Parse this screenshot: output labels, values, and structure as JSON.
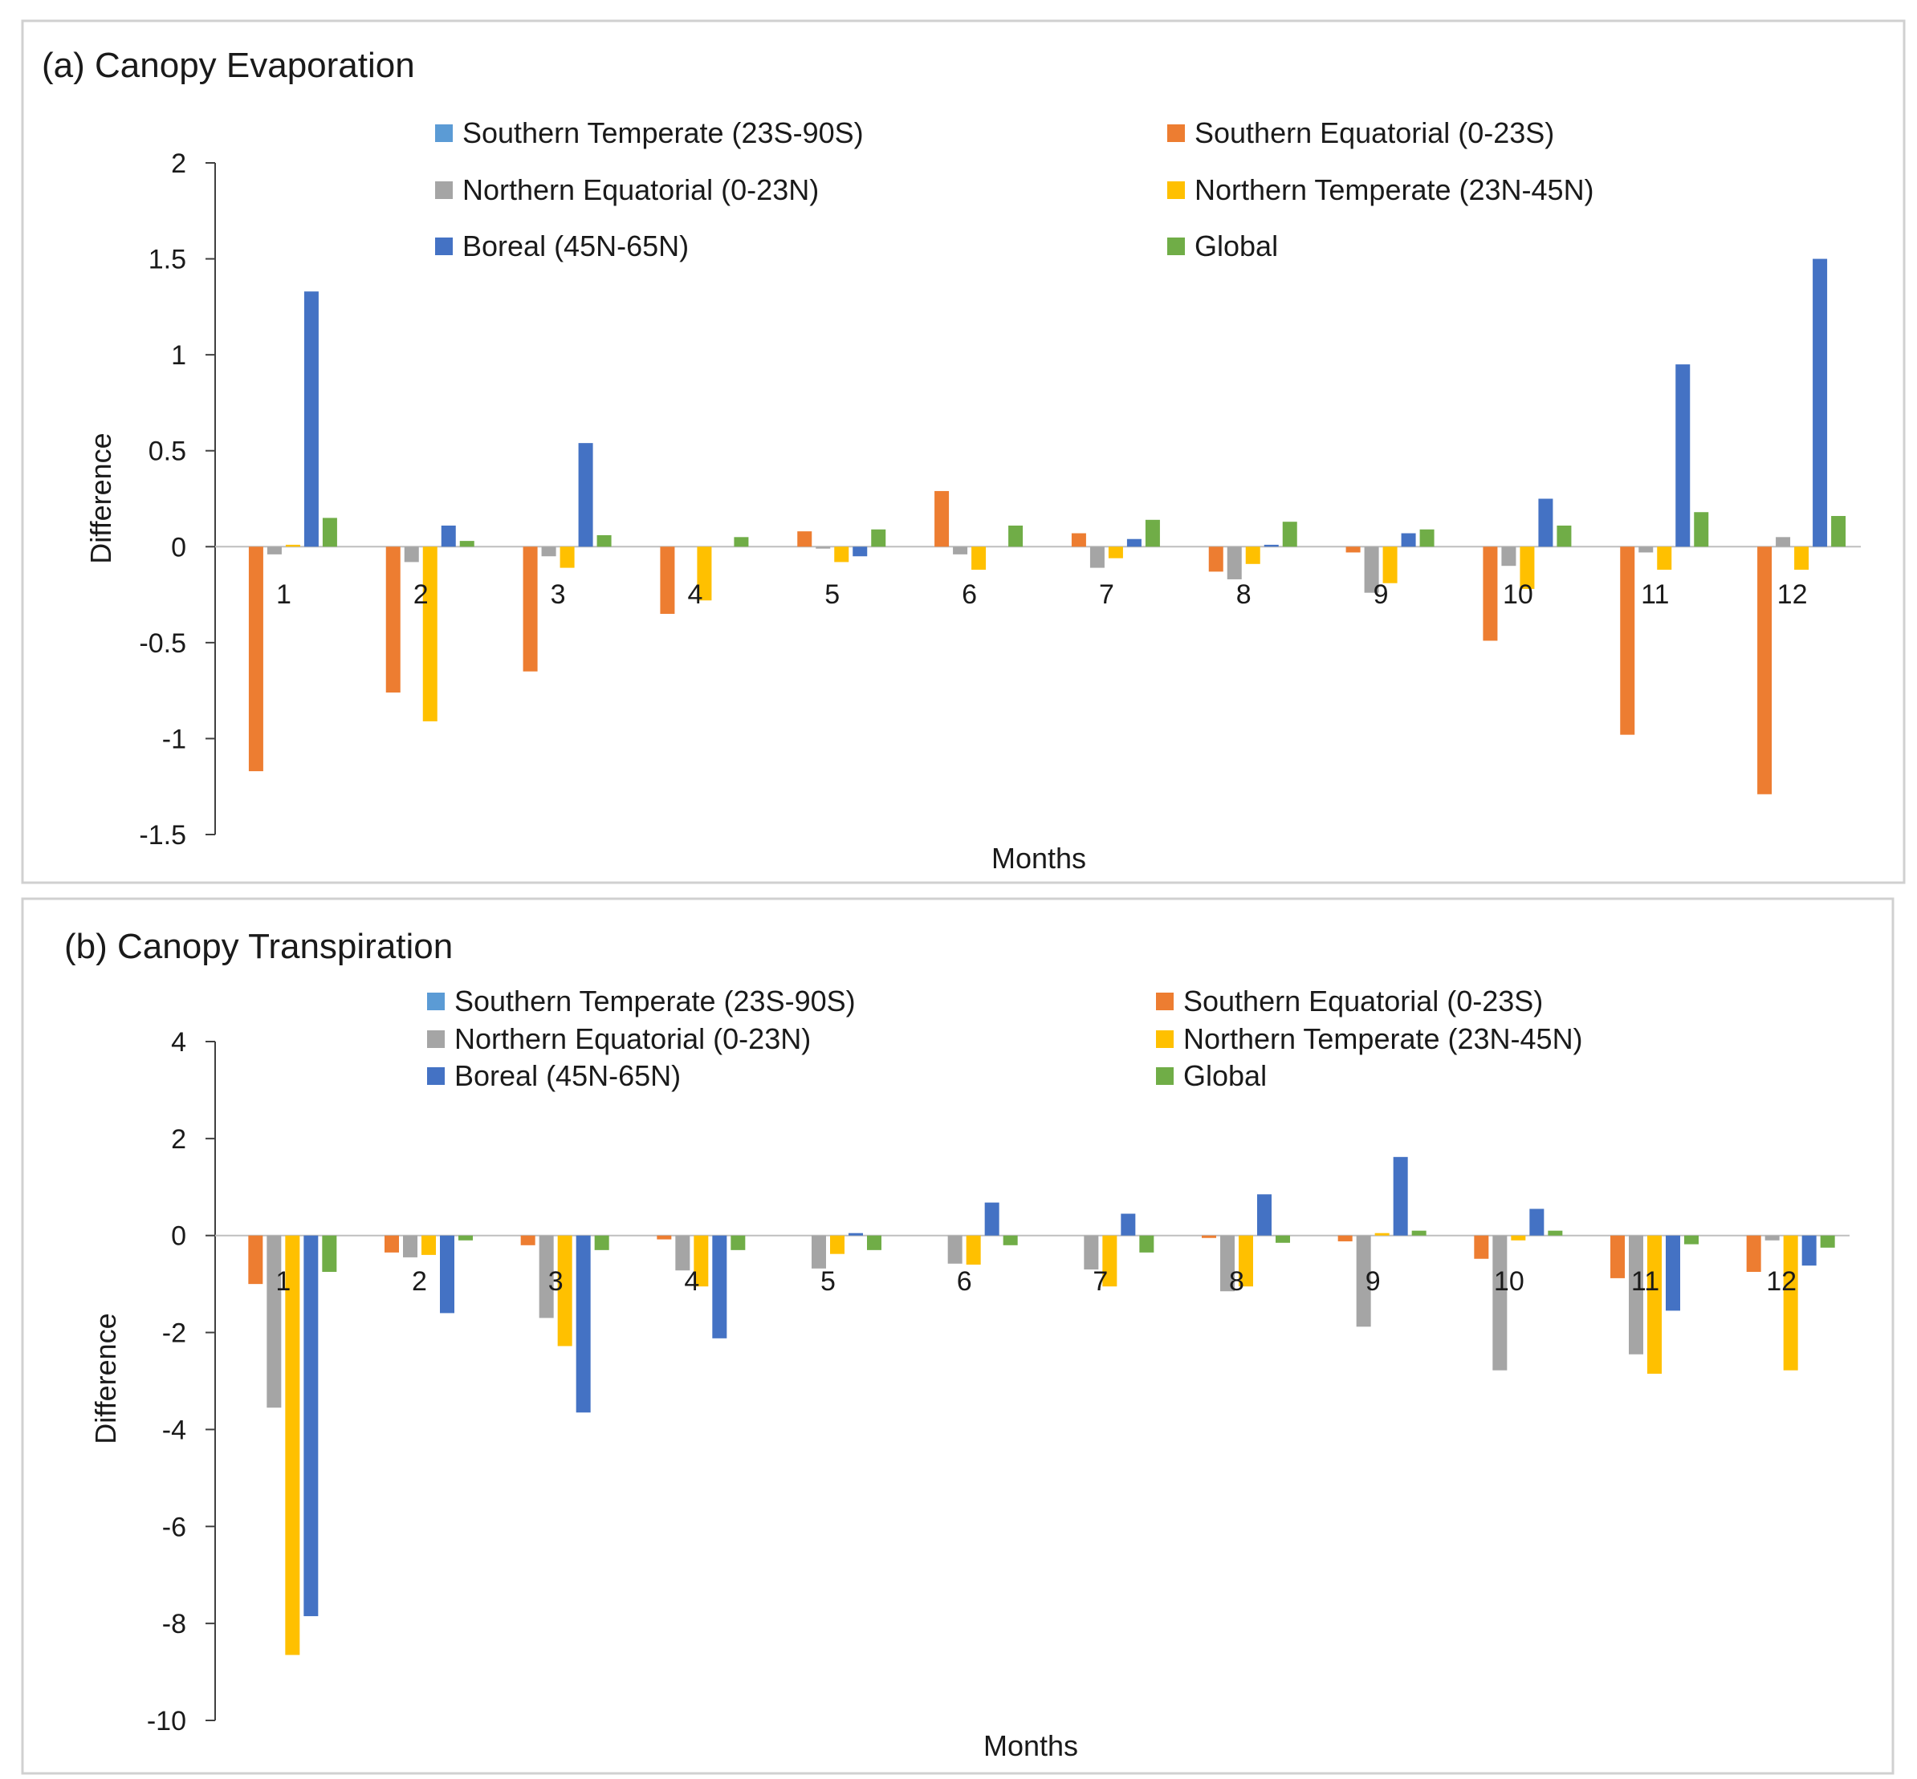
{
  "series_colors": {
    "Southern Temperate (23S-90S)": "#5B9BD5",
    "Southern Equatorial (0-23S)": "#ED7D31",
    "Northern Equatorial (0-23N)": "#A5A5A5",
    "Northern Temperate (23N-45N)": "#FFC000",
    "Boreal (45N-65N)": "#4472C4",
    "Global": "#70AD47"
  },
  "chart_data": [
    {
      "type": "bar",
      "title": "(a) Canopy Evaporation",
      "xlabel": "Months",
      "ylabel": "Difference",
      "ylim": [
        -1.5,
        2
      ],
      "yticks": [
        "2",
        "1.5",
        "1",
        "0.5",
        "0",
        "-0.5",
        "-1",
        "-1.5"
      ],
      "categories": [
        "1",
        "2",
        "3",
        "4",
        "5",
        "6",
        "7",
        "8",
        "9",
        "10",
        "11",
        "12"
      ],
      "legend": [
        "Southern Temperate (23S-90S)",
        "Southern Equatorial (0-23S)",
        "Northern Equatorial (0-23N)",
        "Northern Temperate (23N-45N)",
        "Boreal (45N-65N)",
        "Global"
      ],
      "series": [
        {
          "name": "Southern Temperate (23S-90S)",
          "values": [
            0,
            0,
            0,
            0,
            0,
            0,
            0,
            0,
            0,
            0,
            0,
            0
          ]
        },
        {
          "name": "Southern Equatorial (0-23S)",
          "values": [
            -1.17,
            -0.76,
            -0.65,
            -0.35,
            0.08,
            0.29,
            0.07,
            -0.13,
            -0.03,
            -0.49,
            -0.98,
            -1.29
          ]
        },
        {
          "name": "Northern Equatorial (0-23N)",
          "values": [
            -0.04,
            -0.08,
            -0.05,
            0,
            -0.01,
            -0.04,
            -0.11,
            -0.17,
            -0.24,
            -0.1,
            -0.03,
            0.05
          ]
        },
        {
          "name": "Northern Temperate (23N-45N)",
          "values": [
            0.01,
            -0.91,
            -0.11,
            -0.28,
            -0.08,
            -0.12,
            -0.06,
            -0.09,
            -0.19,
            -0.22,
            -0.12,
            -0.12
          ]
        },
        {
          "name": "Boreal (45N-65N)",
          "values": [
            1.33,
            0.11,
            0.54,
            0,
            -0.05,
            0,
            0.04,
            0.01,
            0.07,
            0.25,
            0.95,
            1.5
          ]
        },
        {
          "name": "Global",
          "values": [
            0.15,
            0.03,
            0.06,
            0.05,
            0.09,
            0.11,
            0.14,
            0.13,
            0.09,
            0.11,
            0.18,
            0.16
          ]
        }
      ]
    },
    {
      "type": "bar",
      "title": "(b) Canopy Transpiration",
      "xlabel": "Months",
      "ylabel": "Difference",
      "ylim": [
        -10,
        4
      ],
      "yticks": [
        "4",
        "2",
        "0",
        "-2",
        "-4",
        "-6",
        "-8",
        "-10"
      ],
      "categories": [
        "1",
        "2",
        "3",
        "4",
        "5",
        "6",
        "7",
        "8",
        "9",
        "10",
        "11",
        "12"
      ],
      "legend": [
        "Southern Temperate (23S-90S)",
        "Southern Equatorial (0-23S)",
        "Northern Equatorial (0-23N)",
        "Northern Temperate (23N-45N)",
        "Boreal (45N-65N)",
        "Global"
      ],
      "series": [
        {
          "name": "Southern Temperate (23S-90S)",
          "values": [
            0,
            0,
            0,
            0,
            0,
            0,
            0,
            0,
            0,
            0,
            0,
            0
          ]
        },
        {
          "name": "Southern Equatorial (0-23S)",
          "values": [
            -1.0,
            -0.35,
            -0.2,
            -0.08,
            0,
            0,
            0,
            -0.05,
            -0.12,
            -0.48,
            -0.88,
            -0.75
          ]
        },
        {
          "name": "Northern Equatorial (0-23N)",
          "values": [
            -3.55,
            -0.45,
            -1.7,
            -0.72,
            -0.68,
            -0.58,
            -0.7,
            -1.15,
            -1.88,
            -2.78,
            -2.45,
            -0.1
          ]
        },
        {
          "name": "Northern Temperate (23N-45N)",
          "values": [
            -8.65,
            -0.4,
            -2.28,
            -1.05,
            -0.38,
            -0.6,
            -1.05,
            -1.05,
            0.05,
            -0.1,
            -2.85,
            -2.78
          ]
        },
        {
          "name": "Boreal (45N-65N)",
          "values": [
            -7.85,
            -1.6,
            -3.65,
            -2.12,
            0.05,
            0.68,
            0.45,
            0.85,
            1.62,
            0.55,
            -1.55,
            -0.62
          ]
        },
        {
          "name": "Global",
          "values": [
            -0.75,
            -0.1,
            -0.3,
            -0.3,
            -0.3,
            -0.2,
            -0.35,
            -0.15,
            0.1,
            0.1,
            -0.18,
            -0.25
          ]
        }
      ]
    }
  ]
}
